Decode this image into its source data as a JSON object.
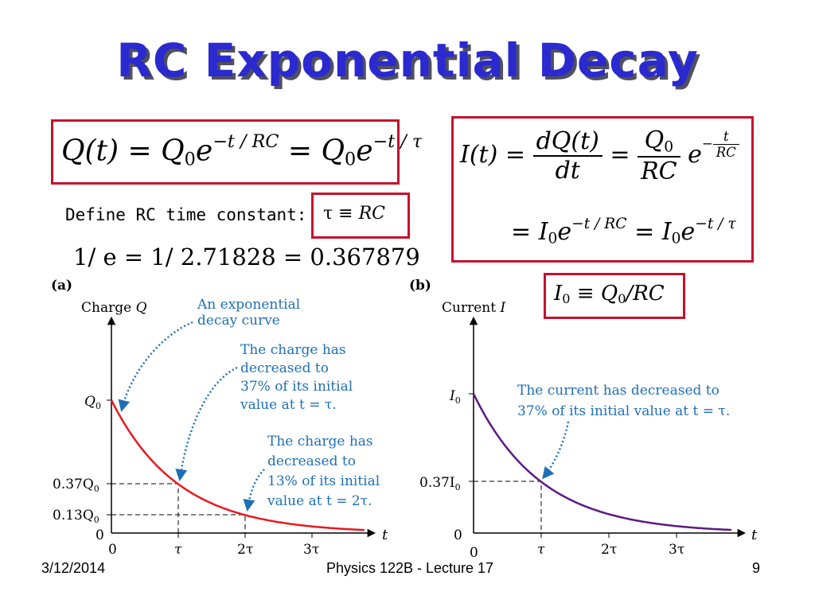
{
  "title": "RC Exponential Decay",
  "equations": {
    "charge": {
      "Q_t": "Q(t)",
      "eq1": "=",
      "Q0a": "Q",
      "sub0a": "0",
      "e1": "e",
      "exp1": "−t / RC",
      "eq2": "=",
      "Q0b": "Q",
      "sub0b": "0",
      "e2": "e",
      "exp2": "−t / τ"
    },
    "current": {
      "I_t": "I(t)",
      "eq1": "=",
      "dQ": "dQ(t)",
      "dt": "dt",
      "eq2": "=",
      "Q0": "Q",
      "Q0sub": "0",
      "RC": "RC",
      "e": "e",
      "exp_minus": "−",
      "exp_t": "t",
      "exp_RC": "RC",
      "eq3": "=",
      "I0a": "I",
      "I0asub": "0",
      "e2": "e",
      "exp2": "−t / RC",
      "eq4": "=",
      "I0b": "I",
      "I0bsub": "0",
      "e3": "e",
      "exp3": "−t / τ"
    },
    "define_text": "Define RC time constant:",
    "tau_def": {
      "tau": "τ",
      "equiv": "≡",
      "RC": "RC"
    },
    "one_over_e": "1/ e = 1/ 2.71828 = 0.367879",
    "I0_def": {
      "I": "I",
      "sub": "0",
      "equiv": "≡",
      "Q": "Q",
      "qsub": "0",
      "rest": "/RC"
    }
  },
  "graph_a": {
    "panel_label": "(a)",
    "y_axis_label": "Charge",
    "y_axis_var": "Q",
    "x_axis_var": "t",
    "y_ticks": {
      "q0": "Q",
      "q0sub": "0",
      "q37": "0.37Q",
      "q37sub": "0",
      "q13": "0.13Q",
      "q13sub": "0",
      "zero": "0"
    },
    "x_ticks": [
      "0",
      "τ",
      "2τ",
      "3τ"
    ],
    "annotation1": [
      "An exponential",
      "decay curve"
    ],
    "annotation2": [
      "The charge has",
      "decreased to",
      "37% of its initial",
      "value at t = τ."
    ],
    "annotation3": [
      "The charge has",
      "decreased to",
      "13% of its initial",
      "value at t = 2τ."
    ],
    "curve_color": "#e8191f",
    "annotation_color": "#1f6fb5"
  },
  "graph_b": {
    "panel_label": "(b)",
    "y_axis_label": "Current",
    "y_axis_var": "I",
    "x_axis_var": "t",
    "y_ticks": {
      "i0": "I",
      "i0sub": "0",
      "i37": "0.37I",
      "i37sub": "0",
      "zero": "0"
    },
    "x_ticks": [
      "0",
      "τ",
      "2τ",
      "3τ"
    ],
    "annotation": [
      "The current has decreased to",
      "37% of its initial value at t = τ."
    ],
    "curve_color": "#5b1a86"
  },
  "footer": {
    "date": "3/12/2014",
    "course": "Physics 122B  -  Lecture 17",
    "page": "9"
  },
  "colors": {
    "title": "#2a2ad0",
    "box_border": "#c8102e"
  }
}
